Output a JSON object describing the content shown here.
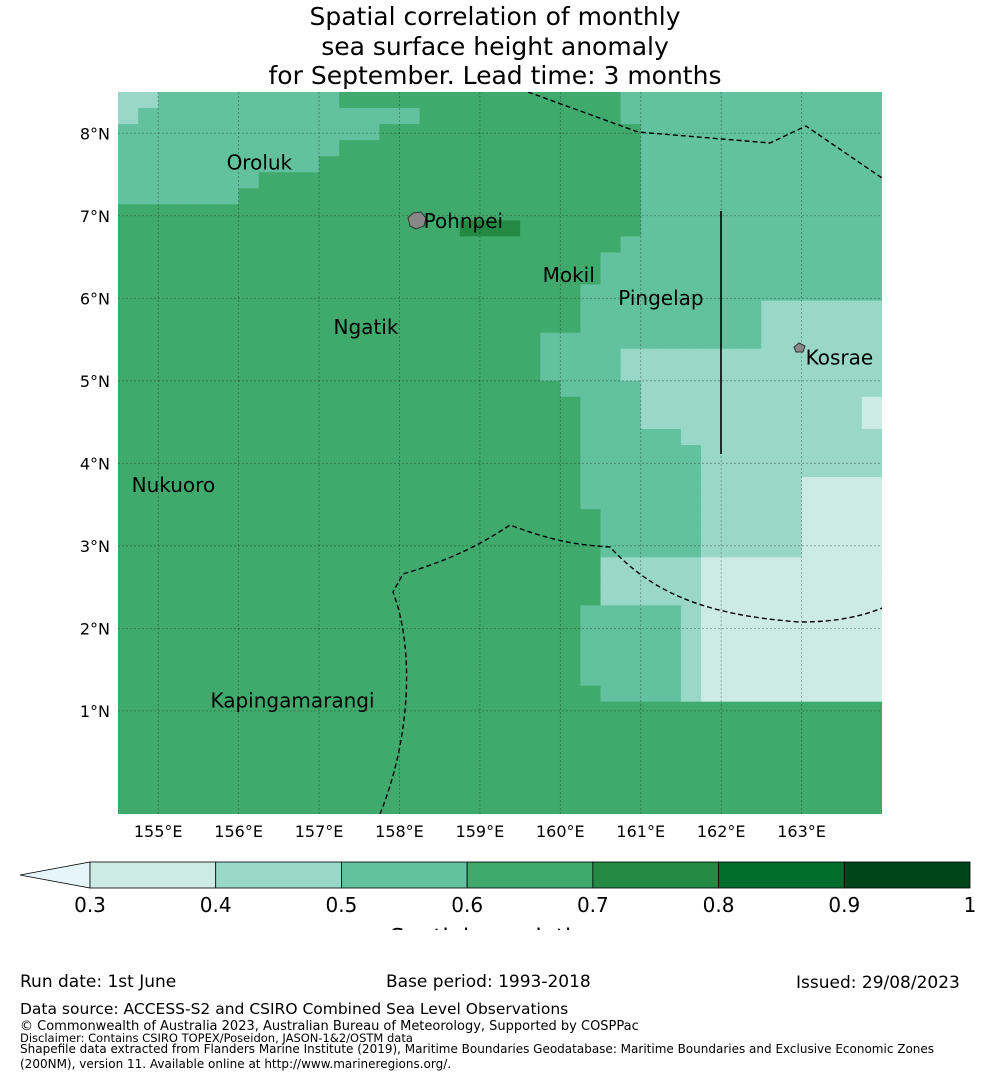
{
  "title": {
    "line1": "Spatial correlation of monthly",
    "line2": "sea surface height anomaly",
    "line3": "for September. Lead time: 3 months"
  },
  "map": {
    "lon_range": [
      154.5,
      164.0
    ],
    "lat_range": [
      -0.25,
      8.5
    ],
    "lon_ticks": [
      "155°E",
      "156°E",
      "157°E",
      "158°E",
      "159°E",
      "160°E",
      "161°E",
      "162°E",
      "163°E"
    ],
    "lat_ticks": [
      "1°N",
      "2°N",
      "3°N",
      "4°N",
      "5°N",
      "6°N",
      "7°N",
      "8°N"
    ],
    "labels": [
      {
        "text": "Oroluk",
        "lon": 155.85,
        "lat": 7.56
      },
      {
        "text": "Pohnpei",
        "lon": 158.3,
        "lat": 6.85
      },
      {
        "text": "Mokil",
        "lon": 159.78,
        "lat": 6.2
      },
      {
        "text": "Pingelap",
        "lon": 160.72,
        "lat": 5.92
      },
      {
        "text": "Ngatik",
        "lon": 157.18,
        "lat": 5.57
      },
      {
        "text": "Kosrae",
        "lon": 163.05,
        "lat": 5.2
      },
      {
        "text": "Nukuoro",
        "lon": 154.67,
        "lat": 3.65
      },
      {
        "text": "Kapingamarangi",
        "lon": 155.65,
        "lat": 1.04
      }
    ],
    "grid": [
      "33444444444555555555555554444444444444",
      "34444444444444455555555554444444444444",
      "44444444444445555555555555444444444444",
      "44444444444555555555555555444444444444",
      "44444444445555555555555555444444444444",
      "44444445555555555555555555444444444444",
      "44444455555555555555555555444444444444",
      "55555555555555555555555555444444444444",
      "55555555555555555666555555444444444444",
      "55555555555555555555555554444444444444",
      "55555555555555555555555544444444444444",
      "55555555555555555555555544444444444444",
      "55555555555555555555555444444444444444",
      "55555555555555555555555444444444333333",
      "55555555555555555555555444444444333333",
      "55555555555555555555544444444444333333",
      "55555555555555555555544443333333333333",
      "55555555555555555555544443333333333333",
      "55555555555555555555554444333333333333",
      "55555555555555555555555444333333333332",
      "55555555555555555555555444333333333332",
      "55555555555555555555555444443333333333",
      "55555555555555555555555444444333333333",
      "55555555555555555555555444444333333333",
      "55555555555555555555555444444333332222",
      "55555555555555555555555444444333332222",
      "55555555555555555555555544444333332222",
      "55555555555555555555555544444333332222",
      "55555555555555555555555544444333332222",
      "55555555555555555555555533333222222222",
      "55555555555555555555555533333222222222",
      "55555555555555555555555533333222222222",
      "55555555555555555555555444443222222222",
      "55555555555555555555555444443222222222",
      "55555555555555555555555444443222222222",
      "55555555555555555555555444443222222222",
      "55555555555555555555555444443222222222",
      "55555555555555555555555544443222222222",
      "55555555555555555555555555555555555555",
      "55555555555555555555555555555555555555",
      "55555555555555555555555555555555555555",
      "55555555555555555555555555555555555555",
      "55555555555555555555555555555555555555",
      "55555555555555555555555555555555555555",
      "55555555555555555555555555555555555555"
    ]
  },
  "colorbar": {
    "ticks": [
      "0.3",
      "0.4",
      "0.5",
      "0.6",
      "0.7",
      "0.8",
      "0.9",
      "1"
    ],
    "colors": [
      "#cdebe4",
      "#99d7c7",
      "#62c2a0",
      "#40aa6c",
      "#238a44",
      "#006d2c",
      "#00441b"
    ],
    "under_color": "#e5f5f9",
    "label": "Spatial correlation"
  },
  "grid_colors": {
    "2": "#cdebe4",
    "3": "#99d7c7",
    "4": "#62c2a0",
    "5": "#40aa6c",
    "6": "#238a44"
  },
  "footer": {
    "run_date": "Run date: 1st June",
    "base_period": "Base period: 1993-2018",
    "issued": "Issued: 29/08/2023",
    "data_source": "Data source: ACCESS-S2 and CSIRO Combined Sea Level Observations",
    "copyright": "© Commonwealth of Australia 2023, Australian Bureau of Meteorology, Supported by COSPPac",
    "disclaimer": "Disclaimer: Contains CSIRO TOPEX/Poseidon, JASON-1&2/OSTM data",
    "shapefile1": "Shapefile data extracted from Flanders Marine Institute (2019), Maritime Boundaries Geodatabase: Maritime Boundaries and Exclusive Economic Zones",
    "shapefile2": "(200NM), version 11. Available online at http://www.marineregions.org/."
  }
}
